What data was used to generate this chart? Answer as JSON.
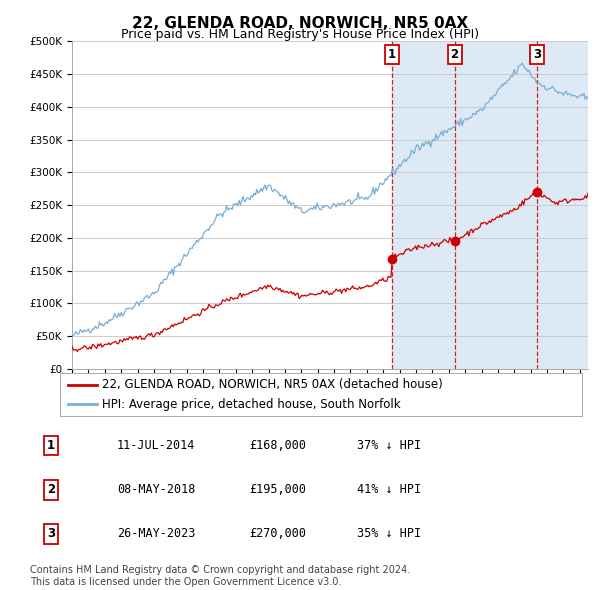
{
  "title": "22, GLENDA ROAD, NORWICH, NR5 0AX",
  "subtitle": "Price paid vs. HM Land Registry's House Price Index (HPI)",
  "ylim": [
    0,
    500000
  ],
  "yticks": [
    0,
    50000,
    100000,
    150000,
    200000,
    250000,
    300000,
    350000,
    400000,
    450000,
    500000
  ],
  "ytick_labels": [
    "£0",
    "£50K",
    "£100K",
    "£150K",
    "£200K",
    "£250K",
    "£300K",
    "£350K",
    "£400K",
    "£450K",
    "£500K"
  ],
  "xlim_start": 1995.0,
  "xlim_end": 2026.5,
  "sale_dates_decimal": [
    2014.53,
    2018.36,
    2023.4
  ],
  "sale_prices": [
    168000,
    195000,
    270000
  ],
  "sale_labels": [
    "1",
    "2",
    "3"
  ],
  "sale_info": [
    {
      "label": "1",
      "date": "11-JUL-2014",
      "price": "£168,000",
      "pct": "37% ↓ HPI"
    },
    {
      "label": "2",
      "date": "08-MAY-2018",
      "price": "£195,000",
      "pct": "41% ↓ HPI"
    },
    {
      "label": "3",
      "date": "26-MAY-2023",
      "price": "£270,000",
      "pct": "35% ↓ HPI"
    }
  ],
  "legend_line1": "22, GLENDA ROAD, NORWICH, NR5 0AX (detached house)",
  "legend_line2": "HPI: Average price, detached house, South Norfolk",
  "footnote": "Contains HM Land Registry data © Crown copyright and database right 2024.\nThis data is licensed under the Open Government Licence v3.0.",
  "line_color_red": "#cc0000",
  "line_color_blue": "#7aadd4",
  "shade_color": "#ddeaf5",
  "grid_color": "#cccccc",
  "background_color": "#ffffff",
  "title_fontsize": 11,
  "subtitle_fontsize": 9,
  "tick_fontsize": 7.5,
  "label_fontsize": 8.5,
  "footnote_fontsize": 7
}
